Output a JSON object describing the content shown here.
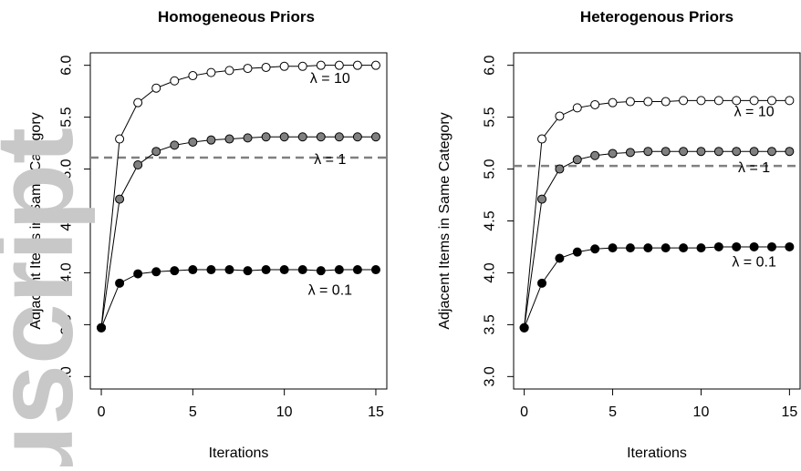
{
  "chart_data": [
    {
      "type": "line",
      "title": "Homogeneous Priors",
      "xlabel": "Iterations",
      "ylabel": "Adjacent Items in Same Category",
      "xlim": [
        0,
        15
      ],
      "ylim": [
        3.0,
        6.0
      ],
      "xticks": [
        0,
        5,
        10,
        15
      ],
      "yticks": [
        3.0,
        3.5,
        4.0,
        4.5,
        5.0,
        5.5,
        6.0
      ],
      "ytick_labels": [
        "3.0",
        "3.5",
        "4.0",
        "4.5",
        "5.0",
        "5.5",
        "6.0"
      ],
      "grid": false,
      "reference_line": {
        "y": 5.11,
        "style": "dashed",
        "color": "#808080"
      },
      "series": [
        {
          "name": "λ = 10",
          "label_x": 12.5,
          "label_y": 5.88,
          "marker_fill": "#ffffff",
          "x": [
            0,
            1,
            2,
            3,
            4,
            5,
            6,
            7,
            8,
            9,
            10,
            11,
            12,
            13,
            14,
            15
          ],
          "y": [
            3.47,
            5.29,
            5.64,
            5.78,
            5.85,
            5.9,
            5.93,
            5.95,
            5.97,
            5.98,
            5.99,
            5.99,
            6.0,
            6.0,
            6.0,
            6.0
          ]
        },
        {
          "name": "λ = 1",
          "label_x": 12.5,
          "label_y": 5.1,
          "marker_fill": "#808080",
          "x": [
            0,
            1,
            2,
            3,
            4,
            5,
            6,
            7,
            8,
            9,
            10,
            11,
            12,
            13,
            14,
            15
          ],
          "y": [
            3.47,
            4.71,
            5.04,
            5.17,
            5.23,
            5.26,
            5.28,
            5.29,
            5.3,
            5.31,
            5.31,
            5.31,
            5.31,
            5.31,
            5.31,
            5.31
          ]
        },
        {
          "name": "λ = 0.1",
          "label_x": 12.5,
          "label_y": 3.84,
          "marker_fill": "#000000",
          "x": [
            0,
            1,
            2,
            3,
            4,
            5,
            6,
            7,
            8,
            9,
            10,
            11,
            12,
            13,
            14,
            15
          ],
          "y": [
            3.47,
            3.9,
            3.99,
            4.01,
            4.02,
            4.03,
            4.03,
            4.03,
            4.02,
            4.03,
            4.03,
            4.03,
            4.02,
            4.03,
            4.03,
            4.03
          ]
        }
      ]
    },
    {
      "type": "line",
      "title": "Heterogenous Priors",
      "xlabel": "Iterations",
      "ylabel": "Adjacent Items in Same Category",
      "xlim": [
        0,
        15
      ],
      "ylim": [
        3.0,
        6.0
      ],
      "xticks": [
        0,
        5,
        10,
        15
      ],
      "yticks": [
        3.0,
        3.5,
        4.0,
        4.5,
        5.0,
        5.5,
        6.0
      ],
      "ytick_labels": [
        "3.0",
        "3.5",
        "4.0",
        "4.5",
        "5.0",
        "5.5",
        "6.0"
      ],
      "grid": false,
      "reference_line": {
        "y": 5.03,
        "style": "dashed",
        "color": "#808080"
      },
      "series": [
        {
          "name": "λ = 10",
          "label_x": 13.0,
          "label_y": 5.56,
          "marker_fill": "#ffffff",
          "x": [
            0,
            1,
            2,
            3,
            4,
            5,
            6,
            7,
            8,
            9,
            10,
            11,
            12,
            13,
            14,
            15
          ],
          "y": [
            3.47,
            5.29,
            5.51,
            5.59,
            5.62,
            5.64,
            5.65,
            5.65,
            5.65,
            5.66,
            5.66,
            5.66,
            5.66,
            5.66,
            5.66,
            5.66
          ]
        },
        {
          "name": "λ = 1",
          "label_x": 13.0,
          "label_y": 5.02,
          "marker_fill": "#808080",
          "x": [
            0,
            1,
            2,
            3,
            4,
            5,
            6,
            7,
            8,
            9,
            10,
            11,
            12,
            13,
            14,
            15
          ],
          "y": [
            3.47,
            4.71,
            5.0,
            5.09,
            5.13,
            5.15,
            5.16,
            5.17,
            5.17,
            5.17,
            5.17,
            5.17,
            5.17,
            5.17,
            5.17,
            5.17
          ]
        },
        {
          "name": "λ = 0.1",
          "label_x": 13.0,
          "label_y": 4.11,
          "marker_fill": "#000000",
          "x": [
            0,
            1,
            2,
            3,
            4,
            5,
            6,
            7,
            8,
            9,
            10,
            11,
            12,
            13,
            14,
            15
          ],
          "y": [
            3.47,
            3.9,
            4.14,
            4.2,
            4.23,
            4.24,
            4.24,
            4.24,
            4.24,
            4.24,
            4.24,
            4.25,
            4.25,
            4.25,
            4.25,
            4.25
          ]
        }
      ]
    }
  ],
  "watermark": {
    "text": "uscript",
    "color": "#c8c8c8"
  }
}
